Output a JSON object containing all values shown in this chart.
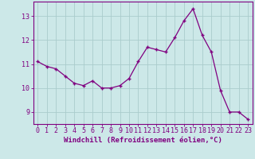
{
  "x": [
    0,
    1,
    2,
    3,
    4,
    5,
    6,
    7,
    8,
    9,
    10,
    11,
    12,
    13,
    14,
    15,
    16,
    17,
    18,
    19,
    20,
    21,
    22,
    23
  ],
  "y": [
    11.1,
    10.9,
    10.8,
    10.5,
    10.2,
    10.1,
    10.3,
    10.0,
    10.0,
    10.1,
    10.4,
    11.1,
    11.7,
    11.6,
    11.5,
    12.1,
    12.8,
    13.3,
    12.2,
    11.5,
    9.9,
    9.0,
    9.0,
    8.7
  ],
  "line_color": "#800080",
  "marker_color": "#800080",
  "bg_color": "#cce8e8",
  "grid_color": "#aacccc",
  "xlabel": "Windchill (Refroidissement éolien,°C)",
  "ylim": [
    8.5,
    13.6
  ],
  "xlim": [
    -0.5,
    23.5
  ],
  "yticks": [
    9,
    10,
    11,
    12,
    13
  ],
  "xticks": [
    0,
    1,
    2,
    3,
    4,
    5,
    6,
    7,
    8,
    9,
    10,
    11,
    12,
    13,
    14,
    15,
    16,
    17,
    18,
    19,
    20,
    21,
    22,
    23
  ],
  "tick_color": "#800080",
  "label_fontsize": 6.5,
  "tick_fontsize": 6,
  "spine_color": "#800080"
}
